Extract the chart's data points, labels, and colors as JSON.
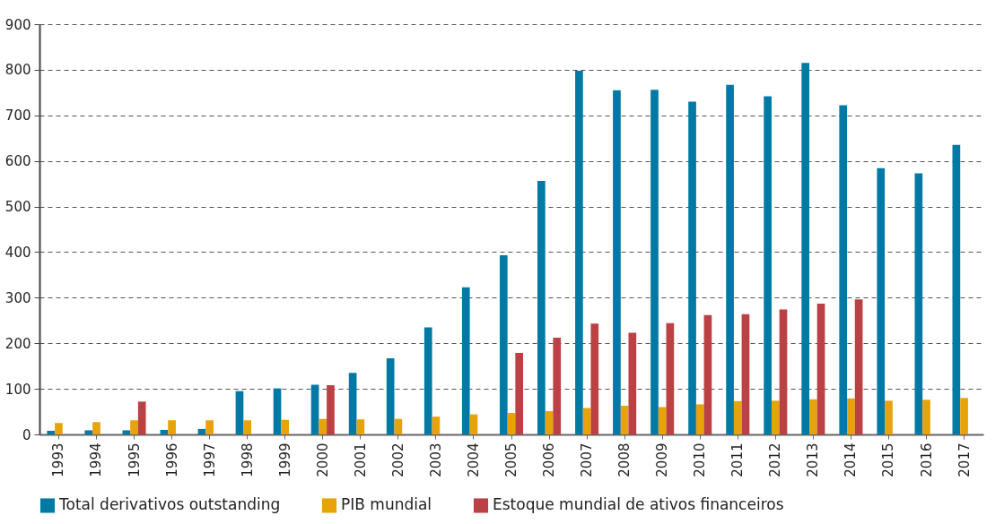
{
  "chart_data": {
    "type": "bar",
    "categories": [
      "1993",
      "1994",
      "1995",
      "1996",
      "1997",
      "1998",
      "1999",
      "2000",
      "2001",
      "2002",
      "2003",
      "2004",
      "2005",
      "2006",
      "2007",
      "2008",
      "2009",
      "2010",
      "2011",
      "2012",
      "2013",
      "2014",
      "2015",
      "2016",
      "2017"
    ],
    "series": [
      {
        "name": "Total derivativos outstanding",
        "color": "#007aa5",
        "values": [
          8,
          9,
          9,
          10,
          12,
          95,
          101,
          109,
          135,
          167,
          235,
          323,
          393,
          556,
          798,
          755,
          756,
          730,
          767,
          742,
          815,
          722,
          584,
          573,
          635
        ]
      },
      {
        "name": "PIB mundial",
        "color": "#e8a20a",
        "values": [
          25,
          27,
          31,
          31,
          31,
          31,
          32,
          34,
          33,
          34,
          39,
          44,
          47,
          51,
          58,
          63,
          60,
          66,
          73,
          74,
          77,
          79,
          74,
          76,
          80
        ]
      },
      {
        "name": "Estoque mundial de ativos financeiros",
        "color": "#bb4144",
        "values": [
          null,
          null,
          72,
          null,
          null,
          null,
          null,
          108,
          null,
          null,
          null,
          null,
          179,
          212,
          243,
          223,
          244,
          262,
          264,
          274,
          287,
          296,
          null,
          null,
          null
        ]
      }
    ],
    "ylim": [
      0,
      900
    ],
    "yticks": [
      0,
      100,
      200,
      300,
      400,
      500,
      600,
      700,
      800,
      900
    ],
    "grid": "y",
    "legend": "bottom"
  }
}
